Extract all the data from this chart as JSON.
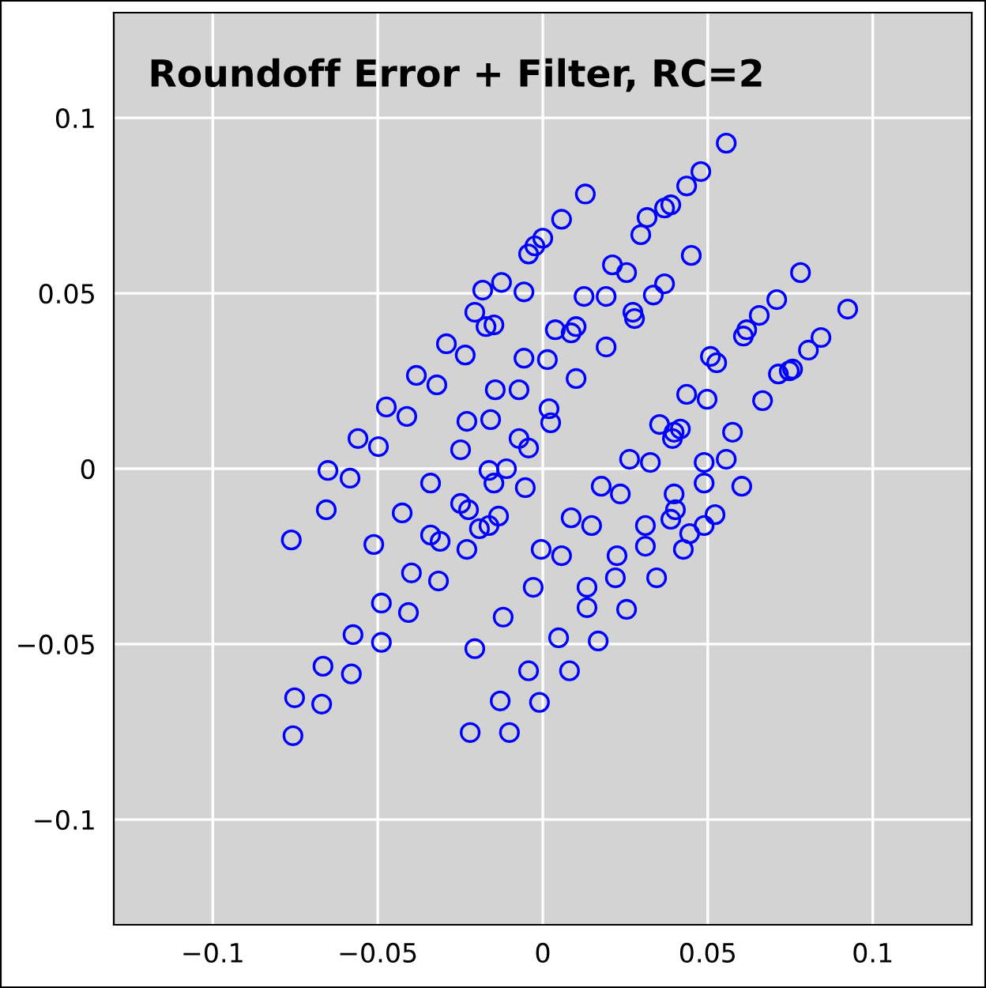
{
  "chart_data": {
    "type": "scatter",
    "title": "Roundoff Error + Filter, RC=2",
    "marker": "circle",
    "grid": true,
    "xlim": [
      -0.13,
      0.13
    ],
    "ylim": [
      -0.13,
      0.13
    ],
    "xticks": [
      {
        "value": -0.1,
        "label": "−0.1"
      },
      {
        "value": -0.05,
        "label": "−0.05"
      },
      0,
      0.05,
      0.1
    ],
    "yticks": [
      {
        "value": -0.1,
        "label": "−0.1"
      },
      {
        "value": -0.05,
        "label": "−0.05"
      },
      0,
      0.05,
      0.1
    ],
    "series": [
      {
        "color": "#0000ff",
        "x": [
          -0.0762,
          -0.0656,
          -0.0651,
          -0.0584,
          -0.056,
          -0.0498,
          -0.0474,
          -0.0412,
          -0.0383,
          -0.0321,
          -0.0292,
          -0.0235,
          -0.0206,
          -0.0148,
          -0.0182,
          -0.0172,
          -0.0125,
          -0.0057,
          -0.0043,
          0.0,
          -0.0024,
          0.0057,
          0.0129,
          0.0556,
          0.0479,
          0.0436,
          0.0388,
          0.0369,
          0.0316,
          0.0297,
          0.0211,
          0.0254,
          0.045,
          0.0125,
          0.0192,
          0.0335,
          0.0369,
          0.0273,
          0.0278,
          0.0101,
          0.0086,
          0.0038,
          0.0192,
          0.0101,
          0.0436,
          0.0498,
          0.0354,
          0.0398,
          0.0417,
          0.0393,
          0.0263,
          0.0326,
          0.0489,
          0.0556,
          0.0489,
          0.0603,
          0.0522,
          0.0489,
          0.0445,
          0.0426,
          0.0402,
          0.0398,
          0.0388,
          0.0311,
          0.0311,
          0.0177,
          0.0235,
          0.0086,
          0.0148,
          0.0057,
          0.0225,
          0.022,
          0.0345,
          0.0134,
          0.0134,
          0.0254,
          0.0048,
          0.0168,
          0.0081,
          -0.0512,
          -0.0426,
          -0.0398,
          -0.0489,
          -0.0407,
          -0.0575,
          -0.0489,
          -0.0666,
          -0.058,
          -0.0752,
          -0.067,
          -0.0757,
          -0.034,
          -0.0249,
          -0.0225,
          -0.034,
          -0.0311,
          -0.023,
          -0.0316,
          -0.0192,
          -0.0163,
          -0.0134,
          -0.0163,
          -0.0148,
          -0.011,
          -0.0053,
          -0.0005,
          -0.0029,
          -0.012,
          -0.0206,
          -0.0043,
          -0.0129,
          -0.001,
          -0.022,
          -0.0101,
          -0.0057,
          0.0014,
          -0.0144,
          -0.0072,
          -0.023,
          -0.0158,
          0.0019,
          0.0024,
          -0.0072,
          -0.0043,
          -0.0249,
          0.0781,
          0.0924,
          0.0843,
          0.0805,
          0.0757,
          0.0747,
          0.0714,
          0.0666,
          0.0709,
          0.0656,
          0.0618,
          0.0608,
          0.0575,
          0.0508,
          0.0527
        ],
        "values": [
          -0.0203,
          -0.0117,
          -0.0005,
          -0.0027,
          0.0086,
          0.0063,
          0.0176,
          0.0149,
          0.0266,
          0.0239,
          0.0356,
          0.0324,
          0.0446,
          0.041,
          0.0509,
          0.0405,
          0.0531,
          0.0504,
          0.0612,
          0.0657,
          0.0635,
          0.0711,
          0.0783,
          0.0928,
          0.0847,
          0.0806,
          0.0752,
          0.0743,
          0.0716,
          0.0667,
          0.0581,
          0.0559,
          0.0608,
          0.0491,
          0.0491,
          0.0495,
          0.0527,
          0.0446,
          0.0428,
          0.0405,
          0.0387,
          0.0396,
          0.0347,
          0.0257,
          0.0212,
          0.0198,
          0.0126,
          0.0104,
          0.0113,
          0.0086,
          0.0027,
          0.0018,
          0.0018,
          0.0027,
          -0.0041,
          -0.005,
          -0.0131,
          -0.0162,
          -0.0185,
          -0.023,
          -0.0117,
          -0.0072,
          -0.0144,
          -0.0162,
          -0.0221,
          -0.005,
          -0.0072,
          -0.014,
          -0.0162,
          -0.0248,
          -0.0248,
          -0.0311,
          -0.0311,
          -0.0338,
          -0.0396,
          -0.0401,
          -0.0482,
          -0.0491,
          -0.0576,
          -0.0216,
          -0.0126,
          -0.0297,
          -0.0383,
          -0.041,
          -0.0473,
          -0.0495,
          -0.0563,
          -0.0585,
          -0.0653,
          -0.0671,
          -0.0761,
          -0.0041,
          -0.0099,
          -0.0117,
          -0.0189,
          -0.0207,
          -0.023,
          -0.032,
          -0.0171,
          -0.0162,
          -0.0135,
          -0.0005,
          -0.0041,
          0.0,
          -0.0054,
          -0.023,
          -0.0338,
          -0.0423,
          -0.0513,
          -0.0576,
          -0.0662,
          -0.0666,
          -0.0752,
          -0.0752,
          0.0315,
          0.0311,
          0.0225,
          0.0225,
          0.0135,
          0.014,
          0.0171,
          0.0131,
          0.0086,
          0.0059,
          0.0054,
          0.0559,
          0.0455,
          0.0374,
          0.0338,
          0.0284,
          0.0279,
          0.027,
          0.0194,
          0.0482,
          0.0437,
          0.0396,
          0.0378,
          0.0104,
          0.032,
          0.0302
        ]
      }
    ]
  }
}
